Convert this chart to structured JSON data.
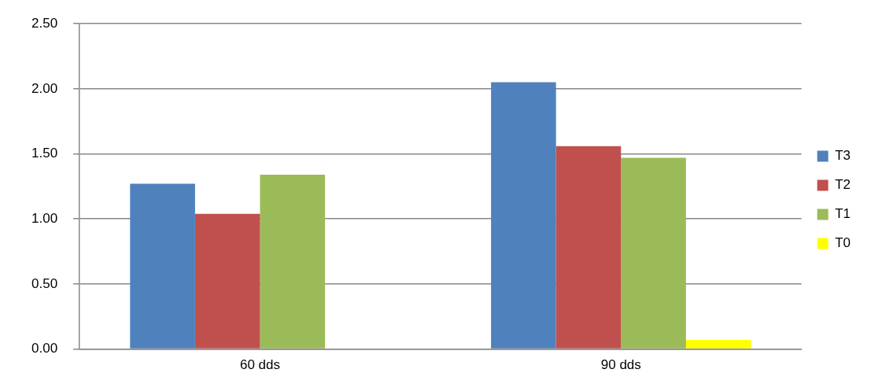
{
  "chart_data": {
    "type": "bar",
    "categories": [
      "60 dds",
      "90 dds"
    ],
    "series": [
      {
        "name": "T3",
        "color": "#4f81bd",
        "values": [
          1.27,
          2.05
        ]
      },
      {
        "name": "T2",
        "color": "#c0504d",
        "values": [
          1.04,
          1.56
        ]
      },
      {
        "name": "T1",
        "color": "#9bbb59",
        "values": [
          1.34,
          1.47
        ]
      },
      {
        "name": "T0",
        "color": "#ffff00",
        "values": [
          0,
          0.07
        ]
      }
    ],
    "ylim": [
      0,
      2.5
    ],
    "yticks": [
      {
        "value": 0,
        "label": "0.00"
      },
      {
        "value": 0.5,
        "label": "0.50"
      },
      {
        "value": 1,
        "label": "1.00"
      },
      {
        "value": 1.5,
        "label": "1.50"
      },
      {
        "value": 2,
        "label": "2.00"
      },
      {
        "value": 2.5,
        "label": "2.50"
      }
    ],
    "grid": "y",
    "legend": "right"
  }
}
